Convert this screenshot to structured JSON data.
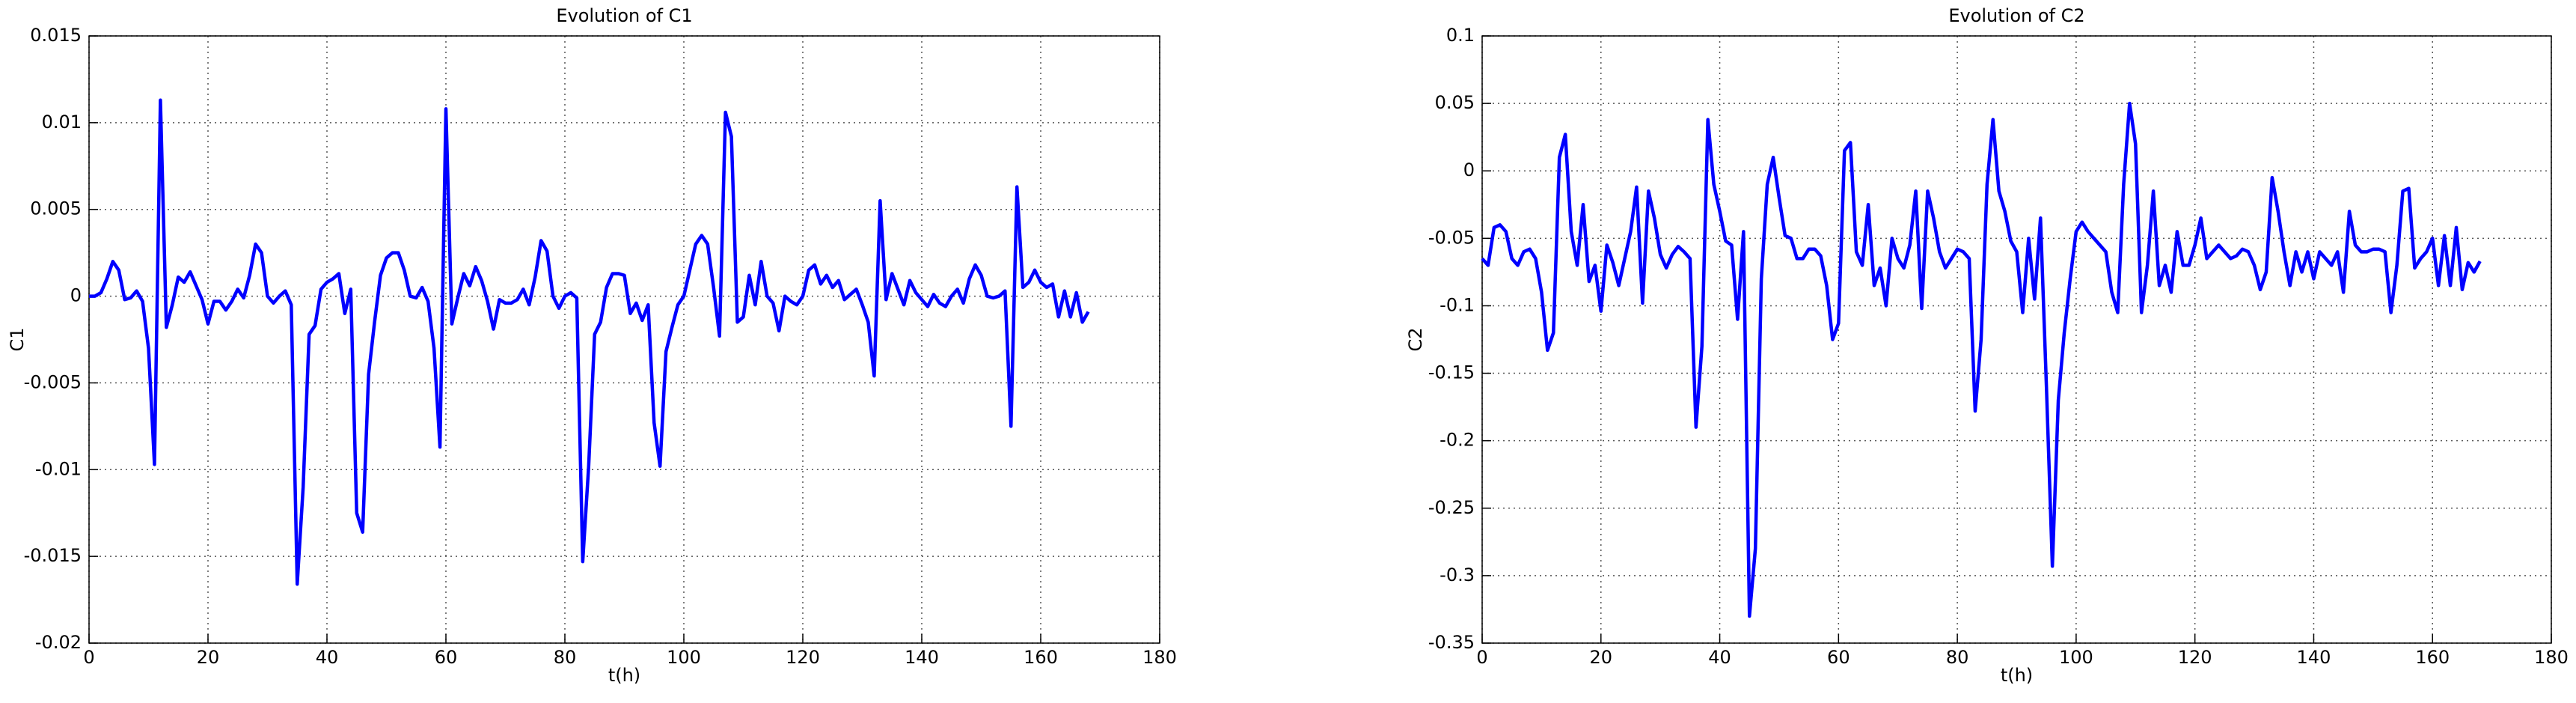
{
  "chart_data": [
    {
      "type": "line",
      "title": "Evolution of C1",
      "xlabel": "t(h)",
      "ylabel": "C1",
      "color": "#0000ff",
      "grid": true,
      "xlim": [
        0,
        180
      ],
      "xticks": [
        0,
        20,
        40,
        60,
        80,
        100,
        120,
        140,
        160,
        180
      ],
      "ylim": [
        -0.02,
        0.015
      ],
      "yticks": [
        -0.02,
        -0.015,
        -0.01,
        -0.005,
        0,
        0.005,
        0.01,
        0.015
      ],
      "x": [
        0,
        1,
        2,
        3,
        4,
        5,
        6,
        7,
        8,
        9,
        10,
        11,
        12,
        13,
        14,
        15,
        16,
        17,
        18,
        19,
        20,
        21,
        22,
        23,
        24,
        25,
        26,
        27,
        28,
        29,
        30,
        31,
        32,
        33,
        34,
        35,
        36,
        37,
        38,
        39,
        40,
        41,
        42,
        43,
        44,
        45,
        46,
        47,
        48,
        49,
        50,
        51,
        52,
        53,
        54,
        55,
        56,
        57,
        58,
        59,
        60,
        61,
        62,
        63,
        64,
        65,
        66,
        67,
        68,
        69,
        70,
        71,
        72,
        73,
        74,
        75,
        76,
        77,
        78,
        79,
        80,
        81,
        82,
        83,
        84,
        85,
        86,
        87,
        88,
        89,
        90,
        91,
        92,
        93,
        94,
        95,
        96,
        97,
        98,
        99,
        100,
        101,
        102,
        103,
        104,
        105,
        106,
        107,
        108,
        109,
        110,
        111,
        112,
        113,
        114,
        115,
        116,
        117,
        118,
        119,
        120,
        121,
        122,
        123,
        124,
        125,
        126,
        127,
        128,
        129,
        130,
        131,
        132,
        133,
        134,
        135,
        136,
        137,
        138,
        139,
        140,
        141,
        142,
        143,
        144,
        145,
        146,
        147,
        148,
        149,
        150,
        151,
        152,
        153,
        154,
        155,
        156,
        157,
        158,
        159,
        160,
        161,
        162,
        163,
        164,
        165,
        166,
        167,
        168
      ],
      "values": [
        0,
        0,
        0.0002,
        0.001,
        0.002,
        0.0015,
        -0.0002,
        -0.0001,
        0.0003,
        -0.0003,
        -0.003,
        -0.0097,
        0.0113,
        -0.0018,
        -0.0005,
        0.0011,
        0.0008,
        0.0014,
        0.0006,
        -0.0002,
        -0.0016,
        -0.0003,
        -0.0003,
        -0.0008,
        -0.0003,
        0.0004,
        -0.0001,
        0.0012,
        0.003,
        0.0025,
        0,
        -0.0004,
        0,
        0.0003,
        -0.0005,
        -0.0166,
        -0.011,
        -0.0022,
        -0.0017,
        0.0004,
        0.0008,
        0.001,
        0.0013,
        -0.001,
        0.0004,
        -0.0125,
        -0.0136,
        -0.0045,
        -0.0015,
        0.0012,
        0.0022,
        0.0025,
        0.0025,
        0.0015,
        0,
        -0.0001,
        0.0005,
        -0.0003,
        -0.003,
        -0.0087,
        0.0108,
        -0.0016,
        -0.0001,
        0.0013,
        0.0006,
        0.0017,
        0.0009,
        -0.0003,
        -0.0019,
        -0.0002,
        -0.0004,
        -0.0004,
        -0.0002,
        0.0004,
        -0.0005,
        0.0011,
        0.0032,
        0.0026,
        0,
        -0.0007,
        0,
        0.0002,
        -0.0001,
        -0.0153,
        -0.0098,
        -0.0022,
        -0.0015,
        0.0005,
        0.0013,
        0.0013,
        0.0012,
        -0.001,
        -0.0004,
        -0.0014,
        -0.0005,
        -0.0073,
        -0.0098,
        -0.0032,
        -0.0018,
        -0.0005,
        0,
        0.0015,
        0.003,
        0.0035,
        0.003,
        0.0005,
        -0.0023,
        0.0106,
        0.0092,
        -0.0015,
        -0.0012,
        0.0012,
        -0.0005,
        0.002,
        0,
        -0.0004,
        -0.002,
        0,
        -0.0003,
        -0.0005,
        0,
        0.0015,
        0.0018,
        0.0007,
        0.0012,
        0.0005,
        0.0009,
        -0.0002,
        0.0001,
        0.0004,
        -0.0005,
        -0.0015,
        -0.0046,
        0.0055,
        -0.0002,
        0.0013,
        0.0004,
        -0.0005,
        0.0009,
        0.0002,
        -0.0002,
        -0.0006,
        0.0001,
        -0.0004,
        -0.0006,
        0,
        0.0004,
        -0.0004,
        0.001,
        0.0018,
        0.0012,
        0,
        -0.0001,
        0,
        0.0003,
        -0.0075,
        0.0063,
        0.0005,
        0.0008,
        0.0015,
        0.0008,
        0.0005,
        0.0007,
        -0.0012,
        0.0003,
        -0.0012,
        0.0002,
        -0.0015,
        -0.0009
      ]
    },
    {
      "type": "line",
      "title": "Evolution of C2",
      "xlabel": "t(h)",
      "ylabel": "C2",
      "color": "#0000ff",
      "grid": true,
      "xlim": [
        0,
        180
      ],
      "xticks": [
        0,
        20,
        40,
        60,
        80,
        100,
        120,
        140,
        160,
        180
      ],
      "ylim": [
        -0.35,
        0.1
      ],
      "yticks": [
        -0.35,
        -0.3,
        -0.25,
        -0.2,
        -0.15,
        -0.1,
        -0.05,
        0,
        0.05,
        0.1
      ],
      "x": [
        0,
        1,
        2,
        3,
        4,
        5,
        6,
        7,
        8,
        9,
        10,
        11,
        12,
        13,
        14,
        15,
        16,
        17,
        18,
        19,
        20,
        21,
        22,
        23,
        24,
        25,
        26,
        27,
        28,
        29,
        30,
        31,
        32,
        33,
        34,
        35,
        36,
        37,
        38,
        39,
        40,
        41,
        42,
        43,
        44,
        45,
        46,
        47,
        48,
        49,
        50,
        51,
        52,
        53,
        54,
        55,
        56,
        57,
        58,
        59,
        60,
        61,
        62,
        63,
        64,
        65,
        66,
        67,
        68,
        69,
        70,
        71,
        72,
        73,
        74,
        75,
        76,
        77,
        78,
        79,
        80,
        81,
        82,
        83,
        84,
        85,
        86,
        87,
        88,
        89,
        90,
        91,
        92,
        93,
        94,
        95,
        96,
        97,
        98,
        99,
        100,
        101,
        102,
        103,
        104,
        105,
        106,
        107,
        108,
        109,
        110,
        111,
        112,
        113,
        114,
        115,
        116,
        117,
        118,
        119,
        120,
        121,
        122,
        123,
        124,
        125,
        126,
        127,
        128,
        129,
        130,
        131,
        132,
        133,
        134,
        135,
        136,
        137,
        138,
        139,
        140,
        141,
        142,
        143,
        144,
        145,
        146,
        147,
        148,
        149,
        150,
        151,
        152,
        153,
        154,
        155,
        156,
        157,
        158,
        159,
        160,
        161,
        162,
        163,
        164,
        165,
        166,
        167,
        168
      ],
      "values": [
        -0.065,
        -0.07,
        -0.042,
        -0.04,
        -0.045,
        -0.065,
        -0.07,
        -0.06,
        -0.058,
        -0.065,
        -0.09,
        -0.133,
        -0.12,
        0.01,
        0.027,
        -0.045,
        -0.07,
        -0.025,
        -0.082,
        -0.07,
        -0.104,
        -0.055,
        -0.068,
        -0.085,
        -0.065,
        -0.045,
        -0.012,
        -0.098,
        -0.015,
        -0.035,
        -0.062,
        -0.072,
        -0.062,
        -0.056,
        -0.06,
        -0.065,
        -0.19,
        -0.13,
        0.038,
        -0.01,
        -0.03,
        -0.052,
        -0.055,
        -0.11,
        -0.045,
        -0.33,
        -0.28,
        -0.08,
        -0.01,
        0.01,
        -0.02,
        -0.048,
        -0.05,
        -0.065,
        -0.065,
        -0.058,
        -0.058,
        -0.063,
        -0.085,
        -0.125,
        -0.113,
        0.015,
        0.021,
        -0.06,
        -0.07,
        -0.025,
        -0.085,
        -0.072,
        -0.1,
        -0.05,
        -0.065,
        -0.072,
        -0.055,
        -0.015,
        -0.102,
        -0.015,
        -0.035,
        -0.06,
        -0.072,
        -0.065,
        -0.058,
        -0.06,
        -0.065,
        -0.178,
        -0.125,
        -0.01,
        0.038,
        -0.015,
        -0.03,
        -0.052,
        -0.06,
        -0.105,
        -0.05,
        -0.095,
        -0.035,
        -0.16,
        -0.293,
        -0.17,
        -0.12,
        -0.08,
        -0.045,
        -0.038,
        -0.045,
        -0.05,
        -0.055,
        -0.06,
        -0.09,
        -0.105,
        -0.01,
        0.05,
        0.02,
        -0.105,
        -0.07,
        -0.015,
        -0.085,
        -0.07,
        -0.09,
        -0.045,
        -0.07,
        -0.07,
        -0.055,
        -0.035,
        -0.065,
        -0.06,
        -0.055,
        -0.06,
        -0.065,
        -0.063,
        -0.058,
        -0.06,
        -0.07,
        -0.088,
        -0.075,
        -0.005,
        -0.03,
        -0.06,
        -0.085,
        -0.06,
        -0.075,
        -0.06,
        -0.08,
        -0.06,
        -0.065,
        -0.07,
        -0.06,
        -0.09,
        -0.03,
        -0.055,
        -0.06,
        -0.06,
        -0.058,
        -0.058,
        -0.06,
        -0.105,
        -0.07,
        -0.015,
        -0.013,
        -0.072,
        -0.065,
        -0.06,
        -0.05,
        -0.085,
        -0.048,
        -0.085,
        -0.042,
        -0.088,
        -0.068,
        -0.075,
        -0.067
      ]
    }
  ]
}
